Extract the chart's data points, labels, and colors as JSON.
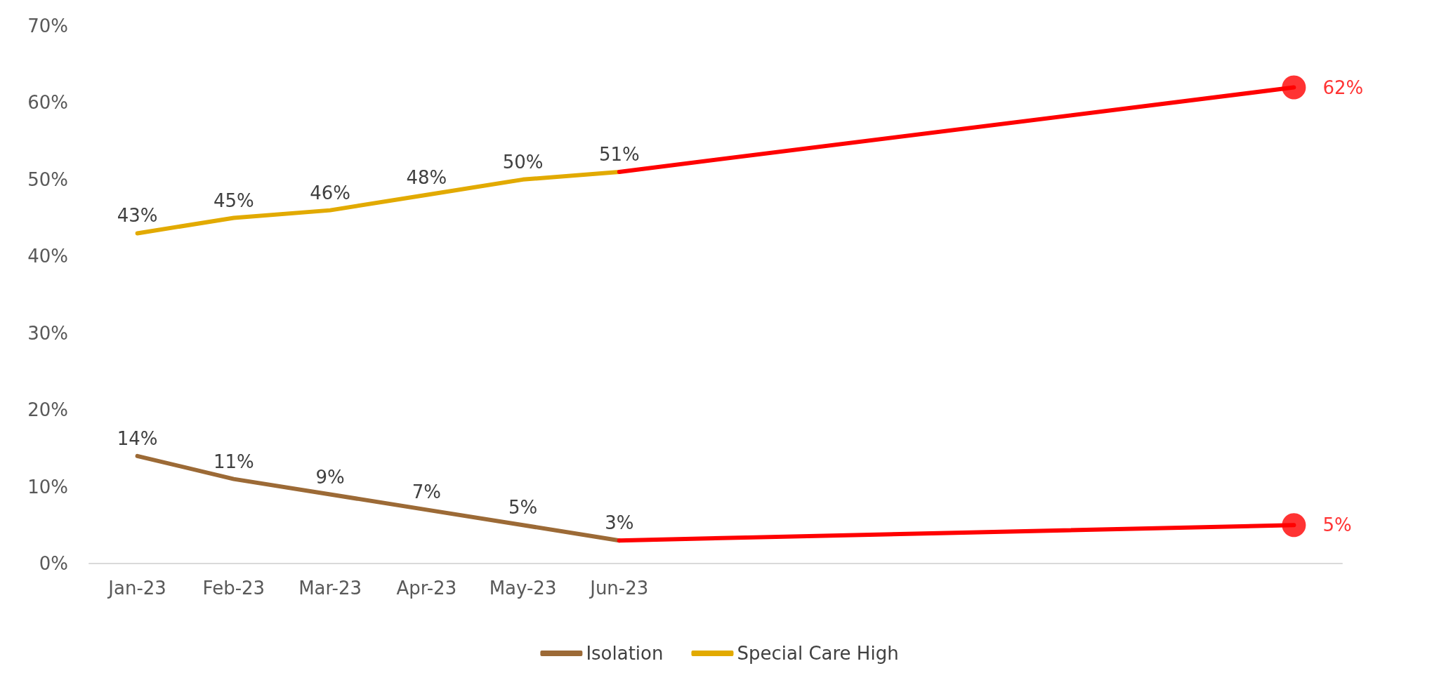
{
  "chart_data": {
    "type": "line",
    "categories": [
      "Jan-23",
      "Feb-23",
      "Mar-23",
      "Apr-23",
      "May-23",
      "Jun-23",
      null,
      null,
      null,
      null,
      null,
      null,
      null
    ],
    "series": [
      {
        "name": "Isolation",
        "color": "#9c6a36",
        "values": [
          14,
          11,
          9,
          7,
          5,
          3,
          null,
          null,
          null,
          null,
          null,
          null,
          null
        ],
        "value_labels": [
          "14%",
          "11%",
          "9%",
          "7%",
          "5%",
          "3%",
          null,
          null,
          null,
          null,
          null,
          null,
          null
        ]
      },
      {
        "name": "Special Care High",
        "color": "#e2aa00",
        "values": [
          43,
          45,
          46,
          48,
          50,
          51,
          null,
          null,
          null,
          null,
          null,
          null,
          null
        ],
        "value_labels": [
          "43%",
          "45%",
          "46%",
          "48%",
          "50%",
          "51%",
          null,
          null,
          null,
          null,
          null,
          null,
          null
        ]
      },
      {
        "type": "line",
        "color": "#ff0000",
        "marker": "none",
        "values": [
          null,
          null,
          null,
          null,
          null,
          51,
          null,
          null,
          null,
          null,
          null,
          null,
          62
        ]
      },
      {
        "type": "line",
        "color": "#ff0000",
        "marker": "none",
        "values": [
          null,
          null,
          null,
          null,
          null,
          3,
          null,
          null,
          null,
          null,
          null,
          null,
          5
        ]
      },
      {
        "type": "scatter",
        "color": "#ff0000",
        "marker": "circle",
        "values": [
          null,
          null,
          null,
          null,
          null,
          null,
          null,
          null,
          null,
          null,
          null,
          null,
          62
        ],
        "value_labels": [
          null,
          null,
          null,
          null,
          null,
          null,
          null,
          null,
          null,
          null,
          null,
          null,
          "62%"
        ]
      },
      {
        "type": "scatter",
        "color": "#ff0000",
        "marker": "circle",
        "values": [
          null,
          null,
          null,
          null,
          null,
          null,
          null,
          null,
          null,
          null,
          null,
          null,
          5
        ],
        "value_labels": [
          null,
          null,
          null,
          null,
          null,
          null,
          null,
          null,
          null,
          null,
          null,
          null,
          "5%"
        ]
      }
    ],
    "ylim": [
      0,
      70
    ],
    "yticks": [
      {
        "value": 0,
        "label": "0%"
      },
      {
        "value": 10,
        "label": "10%"
      },
      {
        "value": 20,
        "label": "20%"
      },
      {
        "value": 30,
        "label": "30%"
      },
      {
        "value": 40,
        "label": "40%"
      },
      {
        "value": 50,
        "label": "50%"
      },
      {
        "value": 60,
        "label": "60%"
      },
      {
        "value": 70,
        "label": "70%"
      }
    ],
    "grid": false,
    "legend": "bottom",
    "marker": "none",
    "line_style": "solid"
  }
}
